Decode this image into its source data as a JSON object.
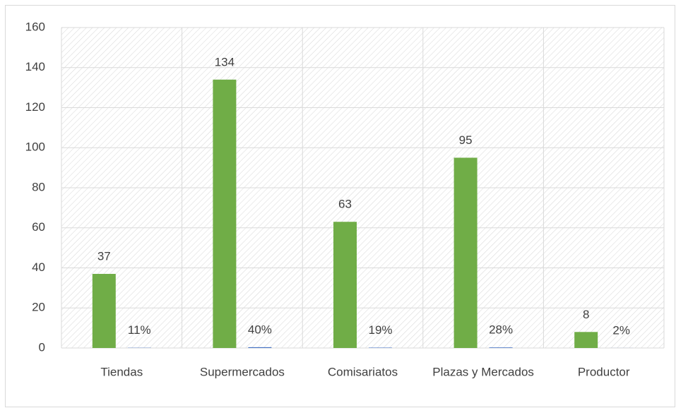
{
  "chart_data": {
    "type": "bar",
    "categories": [
      "Tiendas",
      "Supermercados",
      "Comisariatos",
      "Plazas y Mercados",
      "Productor"
    ],
    "series": [
      {
        "color": "#70ad47",
        "values": [
          37,
          134,
          63,
          95,
          8
        ]
      },
      {
        "color": "#4472c4",
        "values": [
          0.11,
          0.4,
          0.19,
          0.28,
          0.02
        ],
        "value_labels": [
          "11%",
          "40%",
          "19%",
          "28%",
          "2%"
        ]
      }
    ],
    "ylim": [
      0,
      160
    ],
    "yticks": [
      0,
      20,
      40,
      60,
      80,
      100,
      120,
      140,
      160
    ],
    "grid": true
  }
}
